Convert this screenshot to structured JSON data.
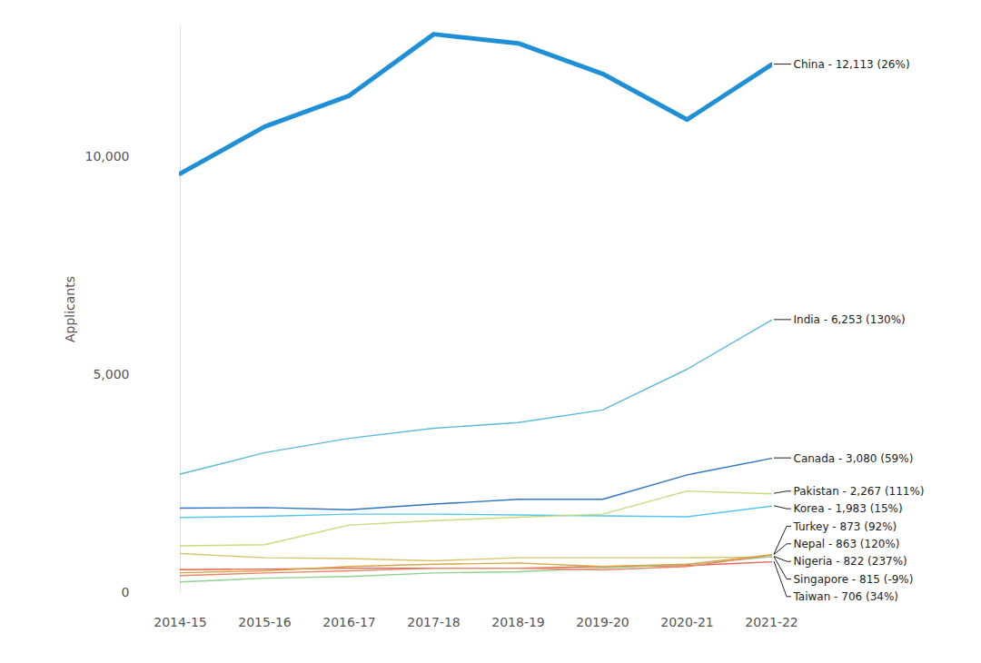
{
  "chart_data": {
    "type": "line",
    "y_label": "Applicants",
    "x": [
      "2014-15",
      "2015-16",
      "2016-17",
      "2017-18",
      "2018-19",
      "2019-20",
      "2020-21",
      "2021-22"
    ],
    "ylim": [
      0,
      13000
    ],
    "yticks": [
      0,
      {
        "value": 5000,
        "label": "5,000"
      },
      {
        "value": 10000,
        "label": "10,000"
      }
    ],
    "grid": false,
    "series": [
      {
        "name": "China - 12,113 (26%)",
        "color": "#1f8fd6",
        "values": [
          9613,
          10690,
          11400,
          12810,
          12600,
          11900,
          10850,
          12113
        ]
      },
      {
        "name": "India - 6,253 (130%)",
        "color": "#5bbbd8",
        "values": [
          2719,
          3210,
          3540,
          3770,
          3900,
          4190,
          5125,
          6253
        ]
      },
      {
        "name": "Canada - 3,080 (59%)",
        "color": "#2e74c0",
        "values": [
          1937,
          1950,
          1900,
          2030,
          2140,
          2140,
          2700,
          3080
        ]
      },
      {
        "name": "Pakistan - 2,267 (111%)",
        "color": "#c4dc7a",
        "values": [
          1074,
          1100,
          1550,
          1650,
          1730,
          1800,
          2330,
          2267
        ]
      },
      {
        "name": "Korea - 1,983 (15%)",
        "color": "#55c6ee",
        "values": [
          1724,
          1750,
          1800,
          1800,
          1780,
          1760,
          1740,
          1983
        ]
      },
      {
        "name": "Turkey - 873 (92%)",
        "color": "#d9a441",
        "values": [
          455,
          500,
          600,
          650,
          680,
          600,
          650,
          873
        ]
      },
      {
        "name": "Nepal - 863 (120%)",
        "color": "#e8876a",
        "values": [
          392,
          450,
          500,
          560,
          560,
          520,
          600,
          863
        ]
      },
      {
        "name": "Nigeria - 822 (237%)",
        "color": "#8fd18f",
        "values": [
          244,
          330,
          370,
          450,
          480,
          560,
          650,
          822
        ]
      },
      {
        "name": "Singapore - 815 (-9%)",
        "color": "#d6c46a",
        "values": [
          896,
          800,
          780,
          730,
          800,
          800,
          800,
          815
        ]
      },
      {
        "name": "Taiwan - 706 (34%)",
        "color": "#e3604f",
        "values": [
          527,
          540,
          560,
          560,
          560,
          600,
          620,
          706
        ]
      }
    ]
  }
}
